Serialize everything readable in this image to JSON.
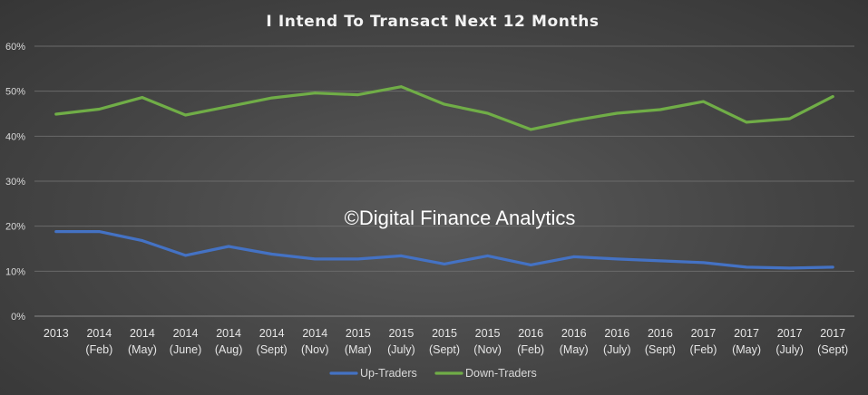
{
  "chart_data": {
    "type": "line",
    "title": "I Intend To Transact Next 12 Months",
    "watermark": "©Digital Finance Analytics",
    "categories": [
      [
        "2013",
        ""
      ],
      [
        "2014",
        "(Feb)"
      ],
      [
        "2014",
        "(May)"
      ],
      [
        "2014",
        "(June)"
      ],
      [
        "2014",
        "(Aug)"
      ],
      [
        "2014",
        "(Sept)"
      ],
      [
        "2014",
        "(Nov)"
      ],
      [
        "2015",
        "(Mar)"
      ],
      [
        "2015",
        "(July)"
      ],
      [
        "2015",
        "(Sept)"
      ],
      [
        "2015",
        "(Nov)"
      ],
      [
        "2016",
        "(Feb)"
      ],
      [
        "2016",
        "(May)"
      ],
      [
        "2016",
        "(July)"
      ],
      [
        "2016",
        "(Sept)"
      ],
      [
        "2017",
        "(Feb)"
      ],
      [
        "2017",
        "(May)"
      ],
      [
        "2017",
        "(July)"
      ],
      [
        "2017",
        "(Sept)"
      ]
    ],
    "yticks": [
      "0%",
      "10%",
      "20%",
      "30%",
      "40%",
      "50%",
      "60%"
    ],
    "ylim": [
      0,
      60
    ],
    "series": [
      {
        "name": "Up-Traders",
        "color": "#4472c4",
        "values": [
          18.8,
          18.8,
          16.8,
          13.5,
          15.5,
          13.8,
          12.7,
          12.7,
          13.4,
          11.6,
          13.4,
          11.4,
          13.2,
          12.7,
          12.3,
          11.9,
          10.9,
          10.7,
          10.9
        ]
      },
      {
        "name": "Down-Traders",
        "color": "#70ad47",
        "values": [
          44.9,
          46.0,
          48.6,
          44.7,
          46.6,
          48.5,
          49.6,
          49.2,
          51.0,
          47.1,
          45.1,
          41.5,
          43.5,
          45.1,
          45.9,
          47.7,
          43.1,
          43.9,
          48.8
        ]
      }
    ],
    "grid": true,
    "legend": "bottom"
  }
}
